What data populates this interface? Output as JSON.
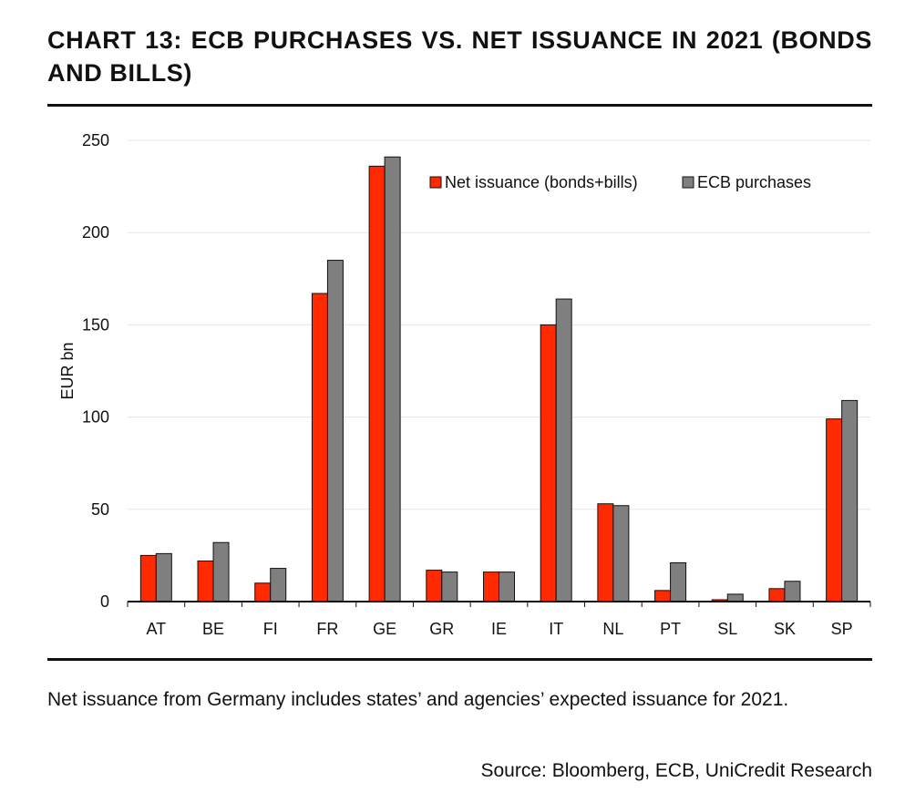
{
  "page": {
    "title": "CHART 13: ECB PURCHASES VS. NET ISSUANCE IN 2021 (BONDS AND BILLS)",
    "note": "Net issuance from Germany includes states’ and agencies’ expected issuance for 2021.",
    "source": "Source: Bloomberg, ECB, UniCredit Research"
  },
  "colors": {
    "net_issuance": "#ff2a00",
    "ecb_purchases": "#7f7f7f",
    "grid": "#e6e6e6",
    "axis": "#111111"
  },
  "chart_data": {
    "type": "bar",
    "title": "CHART 13: ECB PURCHASES VS. NET ISSUANCE IN 2021 (BONDS AND BILLS)",
    "xlabel": "",
    "ylabel": "EUR bn",
    "ylim": [
      0,
      250
    ],
    "yticks": [
      0,
      50,
      100,
      150,
      200,
      250
    ],
    "grid": true,
    "legend_position": "top-right",
    "categories": [
      "AT",
      "BE",
      "FI",
      "FR",
      "GE",
      "GR",
      "IE",
      "IT",
      "NL",
      "PT",
      "SL",
      "SK",
      "SP"
    ],
    "series": [
      {
        "name": "Net issuance (bonds+bills)",
        "values": [
          25,
          22,
          10,
          167,
          236,
          17,
          16,
          150,
          53,
          6,
          1,
          7,
          99
        ]
      },
      {
        "name": "ECB purchases",
        "values": [
          26,
          32,
          18,
          185,
          241,
          16,
          16,
          164,
          52,
          21,
          4,
          11,
          109
        ]
      }
    ]
  }
}
